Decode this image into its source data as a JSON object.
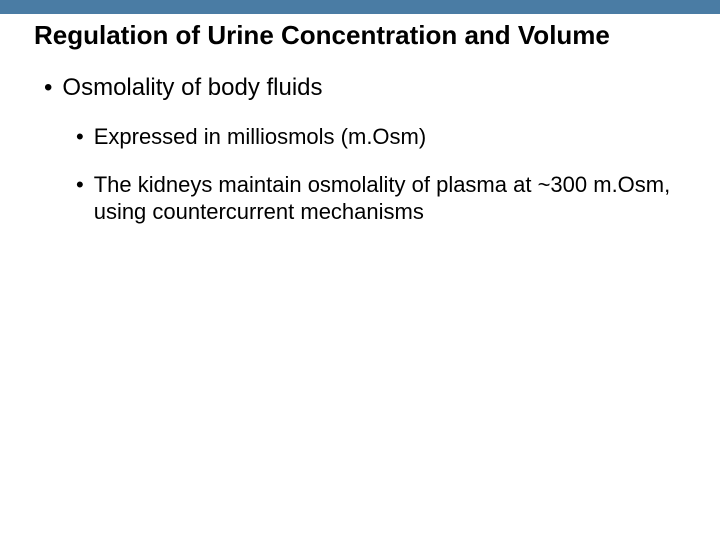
{
  "colors": {
    "top_bar": "#4a7ca4",
    "background": "#ffffff",
    "text": "#000000"
  },
  "title": "Regulation of Urine Concentration and Volume",
  "bullets": {
    "level1": {
      "marker": "•",
      "text": "Osmolality of body fluids"
    },
    "level2a": {
      "marker": "•",
      "text": "Expressed in milliosmols (m.Osm)"
    },
    "level2b": {
      "marker": "•",
      "text": "The kidneys maintain osmolality of plasma at ~300 m.Osm, using countercurrent mechanisms"
    }
  }
}
